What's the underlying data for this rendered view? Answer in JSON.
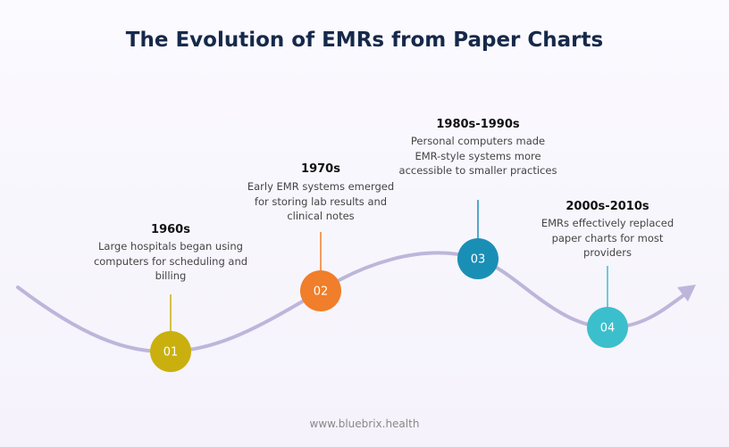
{
  "title": "The Evolution of EMRs from Paper Charts",
  "milestones": [
    {
      "number": "01",
      "period": "1960s",
      "description": "Large hospitals began using computers for scheduling and billing"
    },
    {
      "number": "02",
      "period": "1970s",
      "description": "Early EMR systems emerged for storing lab results and clinical notes"
    },
    {
      "number": "03",
      "period": "1980s-1990s",
      "description": "Personal computers made EMR-style systems more accessible to smaller practices"
    },
    {
      "number": "04",
      "period": "2000s-2010s",
      "description": "EMRs effectively replaced paper charts for most providers"
    }
  ],
  "footer": "www.bluebrix.health"
}
